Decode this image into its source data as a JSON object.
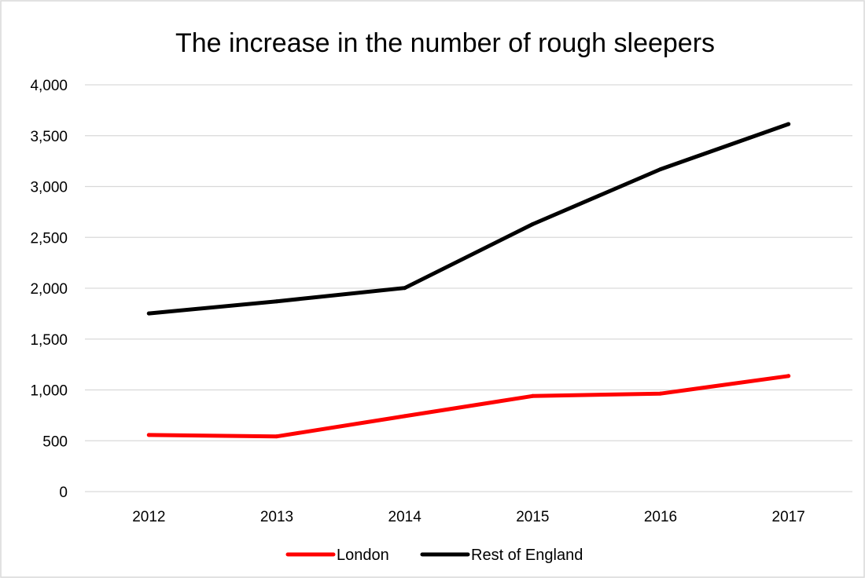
{
  "chart_data": {
    "type": "line",
    "title": "The increase in the number of rough sleepers",
    "xlabel": "",
    "ylabel": "",
    "categories": [
      "2012",
      "2013",
      "2014",
      "2015",
      "2016",
      "2017"
    ],
    "ylim": [
      0,
      4000
    ],
    "yticks": [
      0,
      500,
      1000,
      1500,
      2000,
      2500,
      3000,
      3500,
      4000
    ],
    "ytick_labels": [
      "0",
      "500",
      "1,000",
      "1,500",
      "2,000",
      "2,500",
      "3,000",
      "3,500",
      "4,000"
    ],
    "grid": true,
    "legend_position": "bottom",
    "series": [
      {
        "name": "London",
        "color": "#ff0000",
        "values": [
          557,
          543,
          742,
          940,
          964,
          1137
        ]
      },
      {
        "name": "Rest of England",
        "color": "#000000",
        "values": [
          1752,
          1871,
          2002,
          2629,
          3170,
          3614
        ]
      }
    ]
  }
}
